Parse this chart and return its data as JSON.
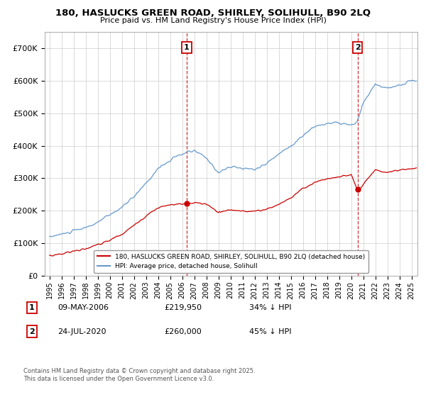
{
  "title": "180, HASLUCKS GREEN ROAD, SHIRLEY, SOLIHULL, B90 2LQ",
  "subtitle": "Price paid vs. HM Land Registry's House Price Index (HPI)",
  "legend_label_red": "180, HASLUCKS GREEN ROAD, SHIRLEY, SOLIHULL, B90 2LQ (detached house)",
  "legend_label_blue": "HPI: Average price, detached house, Solihull",
  "purchase1_date": "09-MAY-2006",
  "purchase1_price": "£219,950",
  "purchase1_hpi": "34% ↓ HPI",
  "purchase2_date": "24-JUL-2020",
  "purchase2_price": "£260,000",
  "purchase2_hpi": "45% ↓ HPI",
  "footer": "Contains HM Land Registry data © Crown copyright and database right 2025.\nThis data is licensed under the Open Government Licence v3.0.",
  "vline1_x": 2006.37,
  "vline2_x": 2020.54,
  "ylim": [
    0,
    750000
  ],
  "xlim": [
    1994.6,
    2025.5
  ],
  "red_color": "#cc0000",
  "blue_color": "#6699cc",
  "vline_color": "#cc3333",
  "background_color": "#ffffff",
  "grid_color": "#cccccc"
}
